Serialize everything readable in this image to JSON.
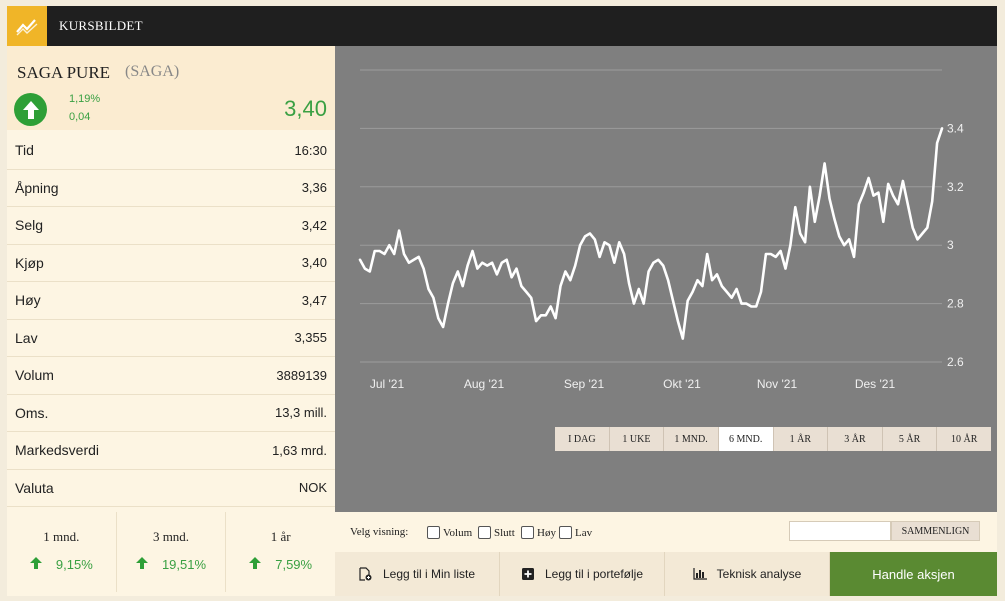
{
  "header": {
    "title": "KURSBILDET",
    "logo_icon": "chart-trend-icon"
  },
  "stock": {
    "name": "SAGA PURE",
    "ticker": "(SAGA)",
    "change_pct": "1,19%",
    "change_abs": "0,04",
    "last": "3,40",
    "direction_icon": "arrow-up-icon"
  },
  "details": [
    {
      "label": "Tid",
      "value": "16:30"
    },
    {
      "label": "Åpning",
      "value": "3,36"
    },
    {
      "label": "Selg",
      "value": "3,42"
    },
    {
      "label": "Kjøp",
      "value": "3,40"
    },
    {
      "label": "Høy",
      "value": "3,47"
    },
    {
      "label": "Lav",
      "value": "3,355"
    },
    {
      "label": "Volum",
      "value": "3889139"
    },
    {
      "label": "Oms.",
      "value": "13,3 mill."
    },
    {
      "label": "Markedsverdi",
      "value": "1,63 mrd."
    },
    {
      "label": "Valuta",
      "value": "NOK"
    }
  ],
  "periods": [
    {
      "label": "1 mnd.",
      "value": "9,15%"
    },
    {
      "label": "3 mnd.",
      "value": "19,51%"
    },
    {
      "label": "1 år",
      "value": "7,59%"
    }
  ],
  "ranges": [
    "I DAG",
    "1 UKE",
    "1 MND.",
    "6 MND.",
    "1 ÅR",
    "3 ÅR",
    "5 ÅR",
    "10 ÅR"
  ],
  "active_range": "6 MND.",
  "view": {
    "label": "Velg visning:",
    "options": [
      "Volum",
      "Slutt",
      "Høy",
      "Lav"
    ],
    "compare_placeholder": "",
    "compare_button": "SAMMENLIGN"
  },
  "actions": {
    "watchlist": "Legg til i Min liste",
    "portfolio": "Legg til i portefølje",
    "technical": "Teknisk analyse",
    "trade": "Handle aksjen"
  },
  "chart_data": {
    "type": "line",
    "xlabel": "",
    "ylabel": "",
    "x_ticks": [
      "Jul '21",
      "Aug '21",
      "Sep '21",
      "Okt '21",
      "Nov '21",
      "Des '21"
    ],
    "y_ticks": [
      3.4,
      3.2,
      3,
      2.8,
      2.6
    ],
    "y_tick_labels": [
      "3.4",
      "3.2",
      "3",
      "2.8",
      "2.6"
    ],
    "ylim": [
      2.6,
      3.6
    ],
    "line_color": "#ffffff",
    "background": "#7f7f7f",
    "grid": true,
    "series": [
      {
        "values": [
          2.95,
          2.92,
          2.91,
          2.98,
          2.98,
          2.97,
          3.0,
          2.97,
          3.05,
          2.97,
          2.94,
          2.95,
          2.96,
          2.92,
          2.85,
          2.82,
          2.75,
          2.72,
          2.8,
          2.87,
          2.91,
          2.86,
          2.93,
          2.98,
          2.92,
          2.94,
          2.93,
          2.94,
          2.9,
          2.94,
          2.95,
          2.89,
          2.92,
          2.86,
          2.84,
          2.82,
          2.74,
          2.76,
          2.76,
          2.79,
          2.75,
          2.86,
          2.91,
          2.88,
          2.93,
          3.0,
          3.03,
          3.04,
          3.02,
          2.96,
          3.01,
          3.0,
          2.94,
          3.01,
          2.97,
          2.87,
          2.8,
          2.85,
          2.8,
          2.91,
          2.94,
          2.95,
          2.93,
          2.88,
          2.81,
          2.74,
          2.68,
          2.81,
          2.84,
          2.88,
          2.86,
          2.97,
          2.88,
          2.9,
          2.86,
          2.84,
          2.82,
          2.85,
          2.8,
          2.8,
          2.79,
          2.79,
          2.84,
          2.97,
          2.97,
          2.96,
          2.98,
          2.92,
          3.0,
          3.13,
          3.04,
          3.01,
          3.2,
          3.08,
          3.17,
          3.28,
          3.16,
          3.09,
          3.03,
          3.0,
          3.02,
          2.96,
          3.14,
          3.18,
          3.23,
          3.17,
          3.18,
          3.08,
          3.21,
          3.17,
          3.14,
          3.22,
          3.14,
          3.06,
          3.02,
          3.04,
          3.06,
          3.15,
          3.35,
          3.4
        ]
      }
    ]
  }
}
